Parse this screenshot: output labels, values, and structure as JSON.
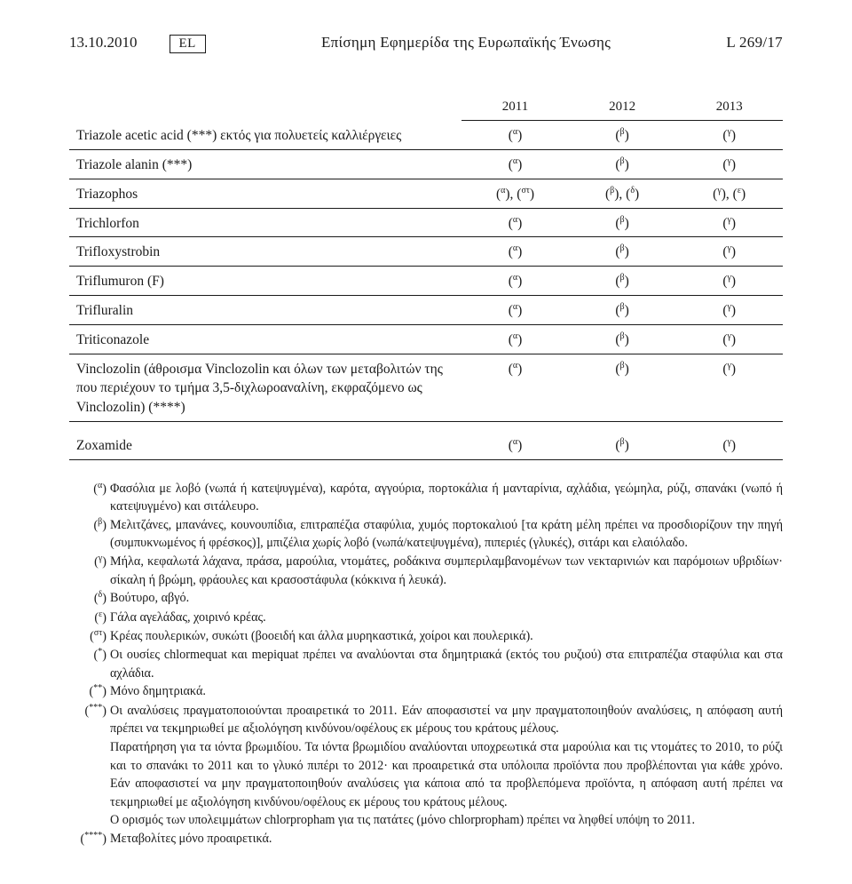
{
  "header": {
    "date": "13.10.2010",
    "lang": "EL",
    "title": "Επίσημη Εφημερίδα της Ευρωπαϊκής Ένωσης",
    "pageref": "L 269/17"
  },
  "table": {
    "years": [
      "2011",
      "2012",
      "2013"
    ],
    "rows": [
      {
        "name": "Triazole acetic acid (***) εκτός για πολυετείς καλλιέργειες",
        "v": [
          "(α)",
          "(β)",
          "(γ)"
        ]
      },
      {
        "name": "Triazole alanin (***)",
        "v": [
          "(α)",
          "(β)",
          "(γ)"
        ]
      },
      {
        "name": "Triazophos",
        "v": [
          "(α), (στ)",
          "(β), (δ)",
          "(γ), (ε)"
        ]
      },
      {
        "name": "Trichlorfon",
        "v": [
          "(α)",
          "(β)",
          "(γ)"
        ]
      },
      {
        "name": "Trifloxystrobin",
        "v": [
          "(α)",
          "(β)",
          "(γ)"
        ]
      },
      {
        "name": "Triflumuron (F)",
        "v": [
          "(α)",
          "(β)",
          "(γ)"
        ]
      },
      {
        "name": "Trifluralin",
        "v": [
          "(α)",
          "(β)",
          "(γ)"
        ]
      },
      {
        "name": "Triticonazole",
        "v": [
          "(α)",
          "(β)",
          "(γ)"
        ]
      },
      {
        "name": "Vinclozolin (άθροισμα Vinclozolin και όλων των μεταβολιτών της που περιέχουν το τμήμα 3,5-διχλωροαναλίνη, εκφραζόμενο ως Vinclozolin) (****)",
        "v": [
          "(α)",
          "(β)",
          "(γ)"
        ]
      },
      {
        "name": "Zoxamide",
        "v": [
          "(α)",
          "(β)",
          "(γ)"
        ],
        "gap": true
      }
    ]
  },
  "footnotes": [
    {
      "mark": "(α)",
      "text": "Φασόλια με λοβό (νωπά ή κατεψυγμένα), καρότα, αγγούρια, πορτοκάλια ή μανταρίνια, αχλάδια, γεώμηλα, ρύζι, σπανάκι (νωπό ή κατεψυγμένο) και σιτάλευρο."
    },
    {
      "mark": "(β)",
      "text": "Μελιτζάνες, μπανάνες, κουνουπίδια, επιτραπέζια σταφύλια, χυμός πορτοκαλιού [τα κράτη μέλη πρέπει να προσδιορίζουν την πηγή (συμπυκνωμένος ή φρέσκος)], μπιζέλια χωρίς λοβό (νωπά/κατεψυγμένα), πιπεριές (γλυκές), σιτάρι και ελαιόλαδο."
    },
    {
      "mark": "(γ)",
      "text": "Μήλα, κεφαλωτά λάχανα, πράσα, μαρούλια, ντομάτες, ροδάκινα συμπεριλαμβανομένων των νεκταρινιών και παρόμοιων υβριδίων· σίκαλη ή βρώμη, φράουλες και κρασοστάφυλα (κόκκινα ή λευκά)."
    },
    {
      "mark": "(δ)",
      "text": "Βούτυρο, αβγό."
    },
    {
      "mark": "(ε)",
      "text": "Γάλα αγελάδας, χοιρινό κρέας."
    },
    {
      "mark": "(στ)",
      "text": "Κρέας πουλερικών, συκώτι (βοοειδή και άλλα μυρηκαστικά, χοίροι και πουλερικά)."
    },
    {
      "mark": "(*)",
      "text": "Οι ουσίες chlormequat και mepiquat πρέπει να αναλύονται στα δημητριακά (εκτός του ρυζιού) στα επιτραπέζια σταφύλια και στα αχλάδια."
    },
    {
      "mark": "(**)",
      "text": "Μόνο δημητριακά."
    },
    {
      "mark": "(***)",
      "text": "Οι αναλύσεις πραγματοποιούνται προαιρετικά το 2011. Εάν αποφασιστεί να μην πραγματοποιηθούν αναλύσεις, η απόφαση αυτή πρέπει να τεκμηριωθεί με αξιολόγηση κινδύνου/οφέλους εκ μέρους του κράτους μέλους.\nΠαρατήρηση για τα ιόντα βρωμιδίου. Τα ιόντα βρωμιδίου αναλύονται υποχρεωτικά στα μαρούλια και τις ντομάτες το 2010, το ρύζι και το σπανάκι το 2011 και το γλυκό πιπέρι το 2012· και προαιρετικά στα υπόλοιπα προϊόντα που προβλέπονται για κάθε χρόνο. Εάν αποφασιστεί να μην πραγματοποιηθούν αναλύσεις για κάποια από τα προβλεπόμενα προϊόντα, η απόφαση αυτή πρέπει να τεκμηριωθεί με αξιολόγηση κινδύνου/οφέλους εκ μέρους του κράτους μέλους.\nΟ ορισμός των υπολειμμάτων chlorpropham για τις πατάτες (μόνο chlorpropham) πρέπει να ληφθεί υπόψη το 2011."
    },
    {
      "mark": "(****)",
      "text": "Μεταβολίτες μόνο προαιρετικά."
    }
  ]
}
